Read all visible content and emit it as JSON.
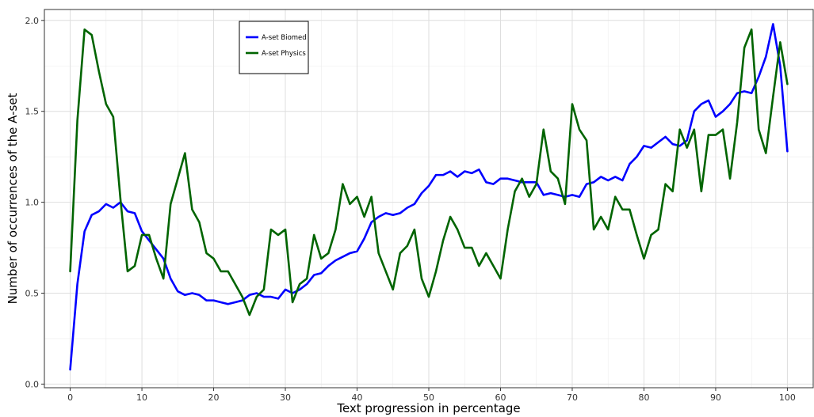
{
  "chart_data": {
    "type": "line",
    "xlabel": "Text progression in percentage",
    "ylabel": "Number of occurrences of the A-set",
    "xlim": [
      -3.6,
      103.6
    ],
    "ylim": [
      -0.02,
      2.06
    ],
    "x_ticks": [
      0,
      10,
      20,
      30,
      40,
      50,
      60,
      70,
      80,
      90,
      100
    ],
    "y_ticks": [
      0.0,
      0.5,
      1.0,
      1.5,
      2.0
    ],
    "y_tick_labels": [
      "0.0",
      "0.5",
      "1.0",
      "1.5",
      "2.0"
    ],
    "grid": true,
    "legend_position": "top-left",
    "series": [
      {
        "name": "A-set Biomed",
        "color": "#0000ff",
        "values": [
          0.08,
          0.55,
          0.84,
          0.93,
          0.95,
          0.99,
          0.97,
          1.0,
          0.95,
          0.94,
          0.84,
          0.79,
          0.74,
          0.69,
          0.58,
          0.51,
          0.49,
          0.5,
          0.49,
          0.46,
          0.46,
          0.45,
          0.44,
          0.45,
          0.46,
          0.49,
          0.5,
          0.48,
          0.48,
          0.47,
          0.52,
          0.5,
          0.52,
          0.55,
          0.6,
          0.61,
          0.65,
          0.68,
          0.7,
          0.72,
          0.73,
          0.8,
          0.89,
          0.92,
          0.94,
          0.93,
          0.94,
          0.97,
          0.99,
          1.05,
          1.09,
          1.15,
          1.15,
          1.17,
          1.14,
          1.17,
          1.16,
          1.18,
          1.11,
          1.1,
          1.13,
          1.13,
          1.12,
          1.11,
          1.11,
          1.11,
          1.04,
          1.05,
          1.04,
          1.03,
          1.04,
          1.03,
          1.1,
          1.11,
          1.14,
          1.12,
          1.14,
          1.12,
          1.21,
          1.25,
          1.31,
          1.3,
          1.33,
          1.36,
          1.32,
          1.31,
          1.34,
          1.5,
          1.54,
          1.56,
          1.47,
          1.5,
          1.54,
          1.6,
          1.61,
          1.6,
          1.69,
          1.8,
          1.98,
          1.75,
          1.28
        ]
      },
      {
        "name": "A-set Physics",
        "color": "#006400",
        "values": [
          0.62,
          1.45,
          1.95,
          1.92,
          1.72,
          1.54,
          1.47,
          1.02,
          0.62,
          0.65,
          0.82,
          0.82,
          0.69,
          0.58,
          0.99,
          1.13,
          1.27,
          0.96,
          0.89,
          0.72,
          0.69,
          0.62,
          0.62,
          0.55,
          0.48,
          0.38,
          0.48,
          0.52,
          0.85,
          0.82,
          0.85,
          0.45,
          0.55,
          0.58,
          0.82,
          0.69,
          0.72,
          0.85,
          1.1,
          0.99,
          1.03,
          0.92,
          1.03,
          0.72,
          0.62,
          0.52,
          0.72,
          0.76,
          0.85,
          0.58,
          0.48,
          0.62,
          0.79,
          0.92,
          0.85,
          0.75,
          0.75,
          0.65,
          0.72,
          0.65,
          0.58,
          0.85,
          1.06,
          1.13,
          1.03,
          1.1,
          1.4,
          1.17,
          1.13,
          0.99,
          1.54,
          1.4,
          1.34,
          0.85,
          0.92,
          0.85,
          1.03,
          0.96,
          0.96,
          0.82,
          0.69,
          0.82,
          0.85,
          1.1,
          1.06,
          1.4,
          1.3,
          1.4,
          1.06,
          1.37,
          1.37,
          1.4,
          1.13,
          1.44,
          1.85,
          1.95,
          1.4,
          1.27,
          1.58,
          1.88,
          1.65
        ]
      }
    ]
  }
}
